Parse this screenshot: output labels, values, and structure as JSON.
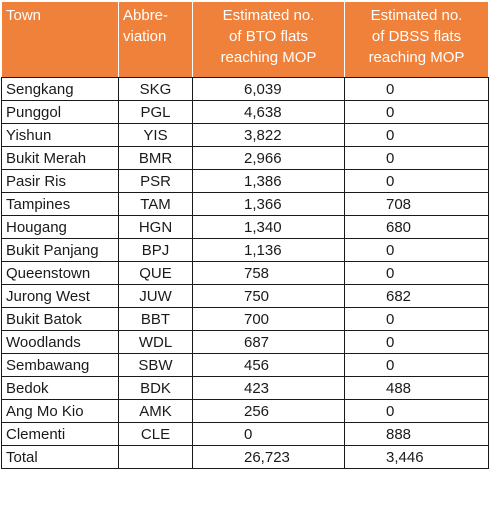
{
  "table": {
    "headers": [
      "Town",
      "Abbre-\nviation",
      "Estimated no.\nof BTO flats\nreaching MOP",
      "Estimated no.\nof DBSS flats\nreaching MOP"
    ],
    "header_color": "#f0813a",
    "rows": [
      [
        "Sengkang",
        "SKG",
        "6,039",
        "0"
      ],
      [
        "Punggol",
        "PGL",
        "4,638",
        "0"
      ],
      [
        "Yishun",
        "YIS",
        "3,822",
        "0"
      ],
      [
        "Bukit Merah",
        "BMR",
        "2,966",
        "0"
      ],
      [
        "Pasir Ris",
        "PSR",
        "1,386",
        "0"
      ],
      [
        "Tampines",
        "TAM",
        "1,366",
        "708"
      ],
      [
        "Hougang",
        "HGN",
        "1,340",
        "680"
      ],
      [
        "Bukit Panjang",
        "BPJ",
        "1,136",
        "0"
      ],
      [
        "Queenstown",
        "QUE",
        "758",
        "0"
      ],
      [
        "Jurong West",
        "JUW",
        "750",
        "682"
      ],
      [
        "Bukit Batok",
        "BBT",
        "700",
        "0"
      ],
      [
        "Woodlands",
        "WDL",
        "687",
        "0"
      ],
      [
        "Sembawang",
        "SBW",
        "456",
        "0"
      ],
      [
        "Bedok",
        "BDK",
        "423",
        "488"
      ],
      [
        "Ang Mo Kio",
        "AMK",
        "256",
        "0"
      ],
      [
        "Clementi",
        "CLE",
        "0",
        "888"
      ]
    ],
    "total": [
      "Total",
      "",
      "26,723",
      "3,446"
    ]
  }
}
